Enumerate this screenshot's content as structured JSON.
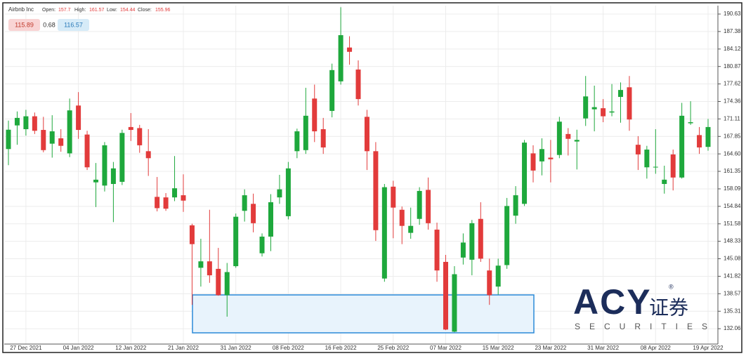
{
  "header": {
    "title": "Airbnb Inc",
    "fields": [
      {
        "label": "Open:",
        "value": 157.7
      },
      {
        "label": "High:",
        "value": 161.57
      },
      {
        "label": "Low:",
        "value": 154.44
      },
      {
        "label": "Close:",
        "value": 155.96
      }
    ]
  },
  "badges": [
    115.89,
    0.68,
    116.57
  ],
  "watermark": {
    "brand": "ACY",
    "mark": "®",
    "chinese": "证券",
    "tagline": "SECURITIES"
  },
  "chart_data": {
    "type": "candlestick",
    "up_color": "#1ea83c",
    "down_color": "#e23b3b",
    "grid": true,
    "categories": [
      null,
      null,
      "27 Dec 2021",
      null,
      null,
      null,
      null,
      null,
      "04 Jan 2022",
      null,
      null,
      null,
      null,
      null,
      "12 Jan 2022",
      null,
      null,
      null,
      null,
      null,
      "21 Jan 2022",
      null,
      null,
      null,
      null,
      null,
      "31 Jan 2022",
      null,
      null,
      null,
      null,
      null,
      "08 Feb 2022",
      null,
      null,
      null,
      null,
      null,
      "16 Feb 2022",
      null,
      null,
      null,
      null,
      null,
      "25 Feb 2022",
      null,
      null,
      null,
      null,
      null,
      "07 Mar 2022",
      null,
      null,
      null,
      null,
      null,
      "15 Mar 2022",
      null,
      null,
      null,
      null,
      null,
      "23 Mar 2022",
      null,
      null,
      null,
      null,
      null,
      "31 Mar 2022",
      null,
      null,
      null,
      null,
      null,
      "08 Apr 2022",
      null,
      null,
      null,
      null,
      null,
      "19 Apr 2022"
    ],
    "open": [
      165.5,
      169.9,
      169.2,
      171.6,
      169.06,
      166.5,
      167.5,
      164.7,
      173.6,
      168.2,
      159.3,
      158.7,
      159,
      159.4,
      169.6,
      169.4,
      165.1,
      156.6,
      156.5,
      156.5,
      156.9,
      151.3,
      143.4,
      144.6,
      143.2,
      138.3,
      143.7,
      154,
      155.3,
      146.1,
      149.2,
      156.5,
      153,
      165.1,
      165.3,
      174.9,
      169.2,
      172.6,
      178.1,
      184.4,
      180.3,
      171.5,
      165.1,
      141.4,
      158.5,
      154.2,
      149.9,
      152.5,
      157.9,
      150.5,
      144.5,
      131.5,
      145.3,
      144.9,
      152.5,
      142.9,
      139.9,
      143.9,
      153.1,
      155.3,
      164.7,
      163.2,
      163.9,
      164.4,
      168.3,
      166.9,
      171.2,
      172.9,
      173.1,
      172.3,
      175.2,
      177,
      166.3,
      162.1,
      162.1,
      159,
      164.5,
      160.2,
      170.3,
      168.1,
      165.9
    ],
    "high": [
      170.8,
      172.5,
      172.8,
      172.3,
      171.5,
      171.8,
      169.2,
      174.9,
      176.1,
      168.9,
      162.9,
      166.8,
      163.1,
      169.1,
      172.2,
      170,
      169.2,
      160.3,
      157.3,
      164.2,
      160.8,
      151.6,
      148.8,
      154.2,
      147.1,
      144.3,
      153.5,
      158,
      157.2,
      149.8,
      157.1,
      160.7,
      163.1,
      169.3,
      176.9,
      177.5,
      171.3,
      181.4,
      191.9,
      186.5,
      182,
      172.8,
      166.8,
      159,
      159.6,
      154.8,
      154.6,
      158.4,
      160.2,
      151.8,
      145.8,
      143.7,
      149.8,
      152.3,
      155.6,
      145.1,
      145.1,
      156.4,
      158.6,
      167.2,
      166.2,
      167.5,
      167.2,
      171.5,
      169.4,
      169.1,
      179.1,
      177.3,
      174.8,
      177.6,
      177.9,
      179.1,
      167.9,
      166.1,
      169.2,
      162.4,
      165.4,
      174.1,
      174.4,
      169.6,
      171.1
    ],
    "low": [
      162.5,
      166.3,
      168,
      168.3,
      164.9,
      163.9,
      165,
      164,
      167.4,
      161.6,
      154.7,
      157.6,
      151.9,
      158.8,
      167,
      164.8,
      160.5,
      153.9,
      154,
      155.8,
      153.8,
      136.5,
      139.9,
      140.6,
      138.2,
      134.3,
      143.4,
      152,
      150,
      145.5,
      146.5,
      155.3,
      152.4,
      163.8,
      164.6,
      166.8,
      164.6,
      171.4,
      177.5,
      181.2,
      173.6,
      161.6,
      148.4,
      140.8,
      148.9,
      147.8,
      148.8,
      151.4,
      150.5,
      140.8,
      131.8,
      131.4,
      144,
      142,
      144.5,
      136.5,
      138.4,
      143.2,
      151.6,
      154.9,
      159.3,
      160.6,
      159.3,
      163.8,
      164.3,
      161.7,
      169.8,
      168.8,
      170.5,
      171.6,
      170.4,
      168.9,
      161.6,
      160,
      160.9,
      157.2,
      157.8,
      160,
      170,
      164.6,
      165.2
    ],
    "close": [
      169.1,
      171.3,
      171.6,
      168.9,
      165.3,
      168.8,
      166.1,
      172.7,
      169.06,
      162.1,
      159.8,
      166.2,
      161.9,
      168.5,
      169.06,
      166.2,
      163.8,
      154.5,
      154.4,
      158.2,
      155.9,
      147.8,
      144.6,
      142,
      138.3,
      142.6,
      152.9,
      156.9,
      151.7,
      149.2,
      155.6,
      158,
      161.9,
      168.8,
      171.7,
      168.8,
      165.8,
      180.2,
      186.7,
      183.6,
      174.8,
      165.1,
      150.4,
      158.4,
      154.6,
      151.2,
      151.2,
      157.7,
      151.7,
      142.9,
      131.9,
      142.2,
      148.1,
      151.7,
      145.1,
      138.3,
      143.8,
      154.9,
      156.9,
      166.7,
      161.5,
      165.5,
      163.6,
      170.6,
      167.4,
      167.2,
      175.3,
      173.3,
      171.6,
      172.5,
      176.5,
      171,
      164.5,
      165.4,
      162.2,
      159.8,
      160.2,
      171.7,
      170.5,
      165.8,
      169.6
    ],
    "ylim": [
      129.2,
      192.2
    ],
    "yticks": [
      132.06,
      135.31,
      138.57,
      141.82,
      145.08,
      148.33,
      151.58,
      154.84,
      158.09,
      161.35,
      {
        "value": 164.6,
        "label": "164.60"
      },
      167.85,
      171.11,
      174.36,
      177.62,
      180.87,
      184.12,
      187.38,
      190.63
    ]
  }
}
